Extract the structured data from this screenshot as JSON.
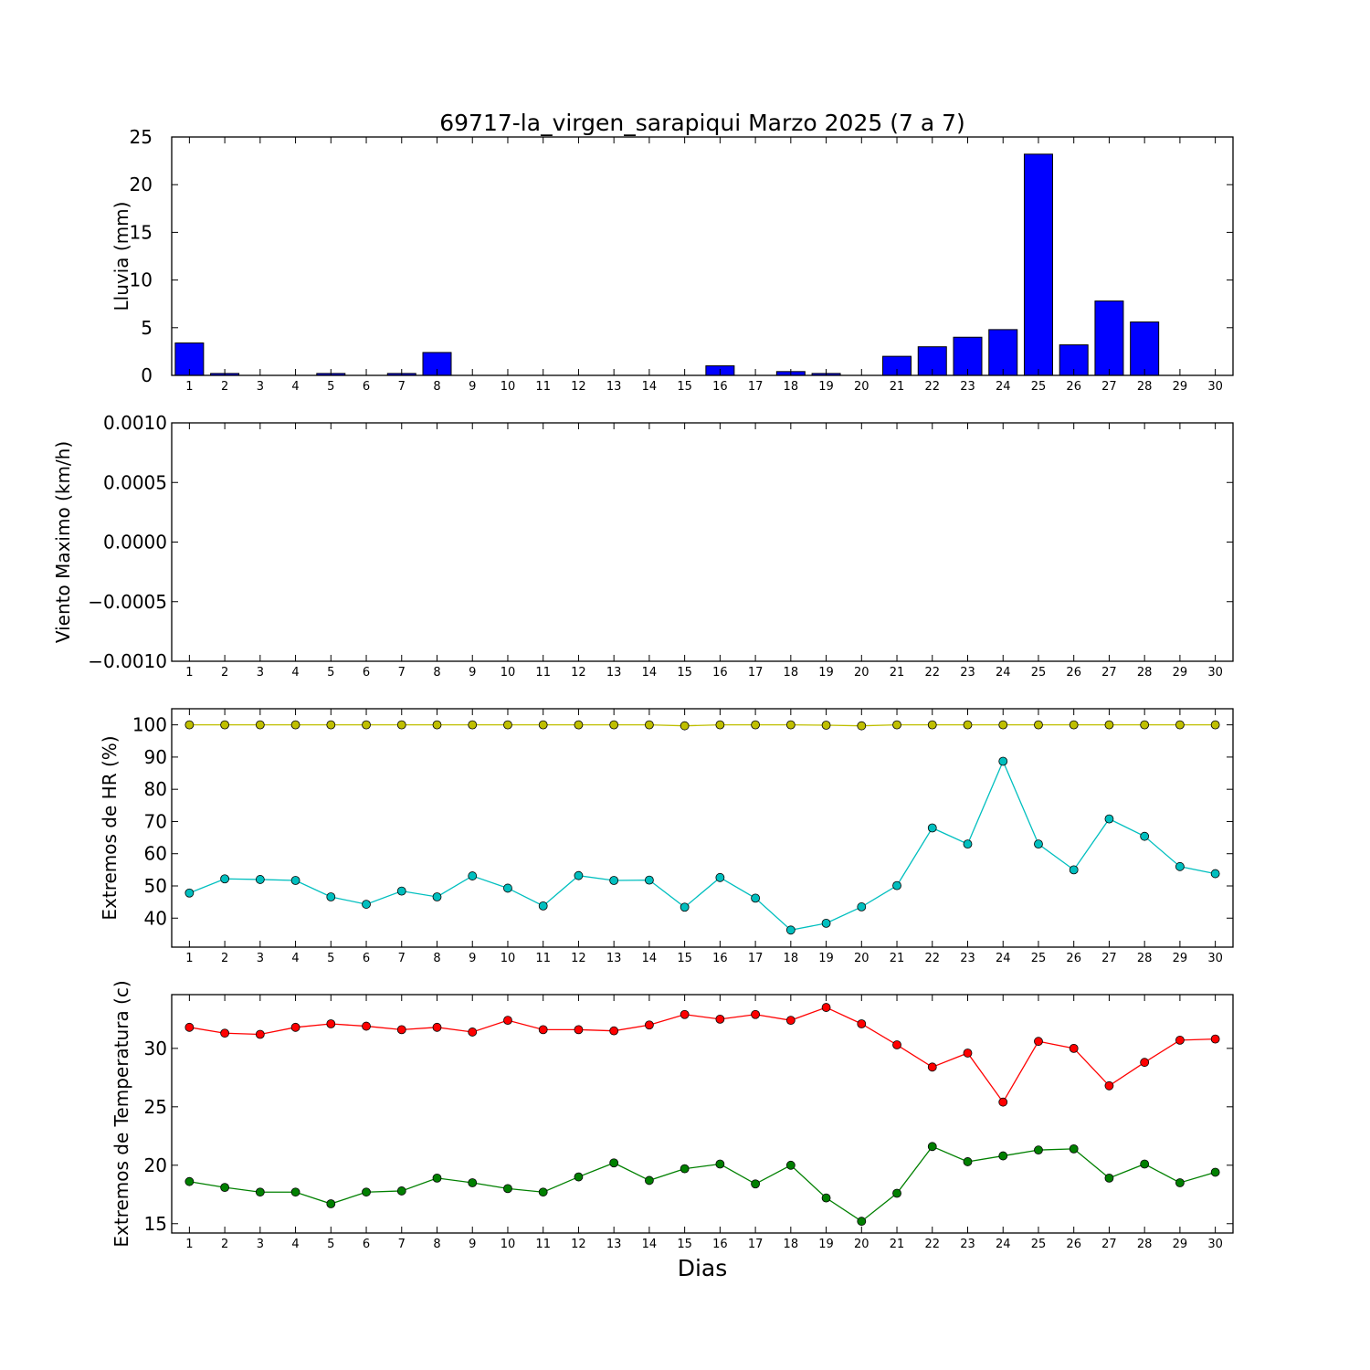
{
  "figure": {
    "title": "69717-la_virgen_sarapiqui Marzo 2025  (7 a 7)",
    "xlabel": "Dias"
  },
  "chart_data": [
    {
      "type": "bar",
      "ylabel": "Lluvia (mm)",
      "ylim": [
        0,
        25
      ],
      "yticks": [
        0,
        5,
        10,
        15,
        20,
        25
      ],
      "xlim": [
        0.5,
        30.5
      ],
      "x": [
        1,
        2,
        3,
        4,
        5,
        6,
        7,
        8,
        9,
        10,
        11,
        12,
        13,
        14,
        15,
        16,
        17,
        18,
        19,
        20,
        21,
        22,
        23,
        24,
        25,
        26,
        27,
        28,
        29,
        30
      ],
      "series": [
        {
          "color": "#0000ff",
          "values": [
            3.4,
            0.2,
            0,
            0,
            0.2,
            0,
            0.2,
            2.4,
            0,
            0,
            0,
            0,
            0,
            0,
            0,
            1.0,
            0,
            0.4,
            0.2,
            0,
            2.0,
            3.0,
            4.0,
            4.8,
            23.2,
            3.2,
            7.8,
            5.6,
            0,
            0
          ]
        }
      ]
    },
    {
      "type": "line",
      "ylabel": "Viento Maximo (km/h)",
      "ylim": [
        -0.001,
        0.001
      ],
      "yticks": [
        -0.001,
        -0.0005,
        0.0,
        0.0005,
        0.001
      ],
      "ytick_labels": [
        "−0.0010",
        "−0.0005",
        "0.0000",
        "0.0005",
        "0.0010"
      ],
      "xlim": [
        0.5,
        30.5
      ],
      "x": [
        1,
        2,
        3,
        4,
        5,
        6,
        7,
        8,
        9,
        10,
        11,
        12,
        13,
        14,
        15,
        16,
        17,
        18,
        19,
        20,
        21,
        22,
        23,
        24,
        25,
        26,
        27,
        28,
        29,
        30
      ],
      "series": []
    },
    {
      "type": "line",
      "ylabel": "Extremos de HR (%)",
      "ylim": [
        31,
        105
      ],
      "yticks": [
        40,
        50,
        60,
        70,
        80,
        90,
        100
      ],
      "xlim": [
        0.5,
        30.5
      ],
      "x": [
        1,
        2,
        3,
        4,
        5,
        6,
        7,
        8,
        9,
        10,
        11,
        12,
        13,
        14,
        15,
        16,
        17,
        18,
        19,
        20,
        21,
        22,
        23,
        24,
        25,
        26,
        27,
        28,
        29,
        30
      ],
      "series": [
        {
          "color": "#bfbf00",
          "values": [
            100,
            100,
            100,
            100,
            100,
            100,
            100,
            100,
            100,
            100,
            100,
            100,
            100,
            100,
            99.7,
            100,
            100,
            100,
            99.9,
            99.7,
            100,
            100,
            100,
            100,
            100,
            100,
            100,
            100,
            100,
            100
          ]
        },
        {
          "color": "#00bfbf",
          "values": [
            47.8,
            52.2,
            52.0,
            51.7,
            46.6,
            44.3,
            48.4,
            46.6,
            53.1,
            49.3,
            43.8,
            53.2,
            51.7,
            51.8,
            43.4,
            52.6,
            46.2,
            36.3,
            38.4,
            43.5,
            50.1,
            68.0,
            63.0,
            88.7,
            63.0,
            55.0,
            70.8,
            65.4,
            56.0,
            53.8
          ]
        }
      ]
    },
    {
      "type": "line",
      "ylabel": "Extremos de Temperatura (c)",
      "ylim": [
        14.2,
        34.6
      ],
      "yticks": [
        15,
        20,
        25,
        30
      ],
      "xlim": [
        0.5,
        30.5
      ],
      "x": [
        1,
        2,
        3,
        4,
        5,
        6,
        7,
        8,
        9,
        10,
        11,
        12,
        13,
        14,
        15,
        16,
        17,
        18,
        19,
        20,
        21,
        22,
        23,
        24,
        25,
        26,
        27,
        28,
        29,
        30
      ],
      "series": [
        {
          "color": "#ff0000",
          "values": [
            31.8,
            31.3,
            31.2,
            31.8,
            32.1,
            31.9,
            31.6,
            31.8,
            31.4,
            32.4,
            31.6,
            31.6,
            31.5,
            32.0,
            32.9,
            32.5,
            32.9,
            32.4,
            33.5,
            32.1,
            30.3,
            28.4,
            29.6,
            25.4,
            30.6,
            30.0,
            26.8,
            28.8,
            30.7,
            30.8
          ]
        },
        {
          "color": "#008000",
          "values": [
            18.6,
            18.1,
            17.7,
            17.7,
            16.7,
            17.7,
            17.8,
            18.9,
            18.5,
            18.0,
            17.7,
            19.0,
            20.2,
            18.7,
            19.7,
            20.1,
            18.4,
            20.0,
            17.2,
            15.2,
            17.6,
            21.6,
            20.3,
            20.8,
            21.3,
            21.4,
            18.9,
            20.1,
            18.5,
            19.4
          ]
        }
      ]
    }
  ]
}
